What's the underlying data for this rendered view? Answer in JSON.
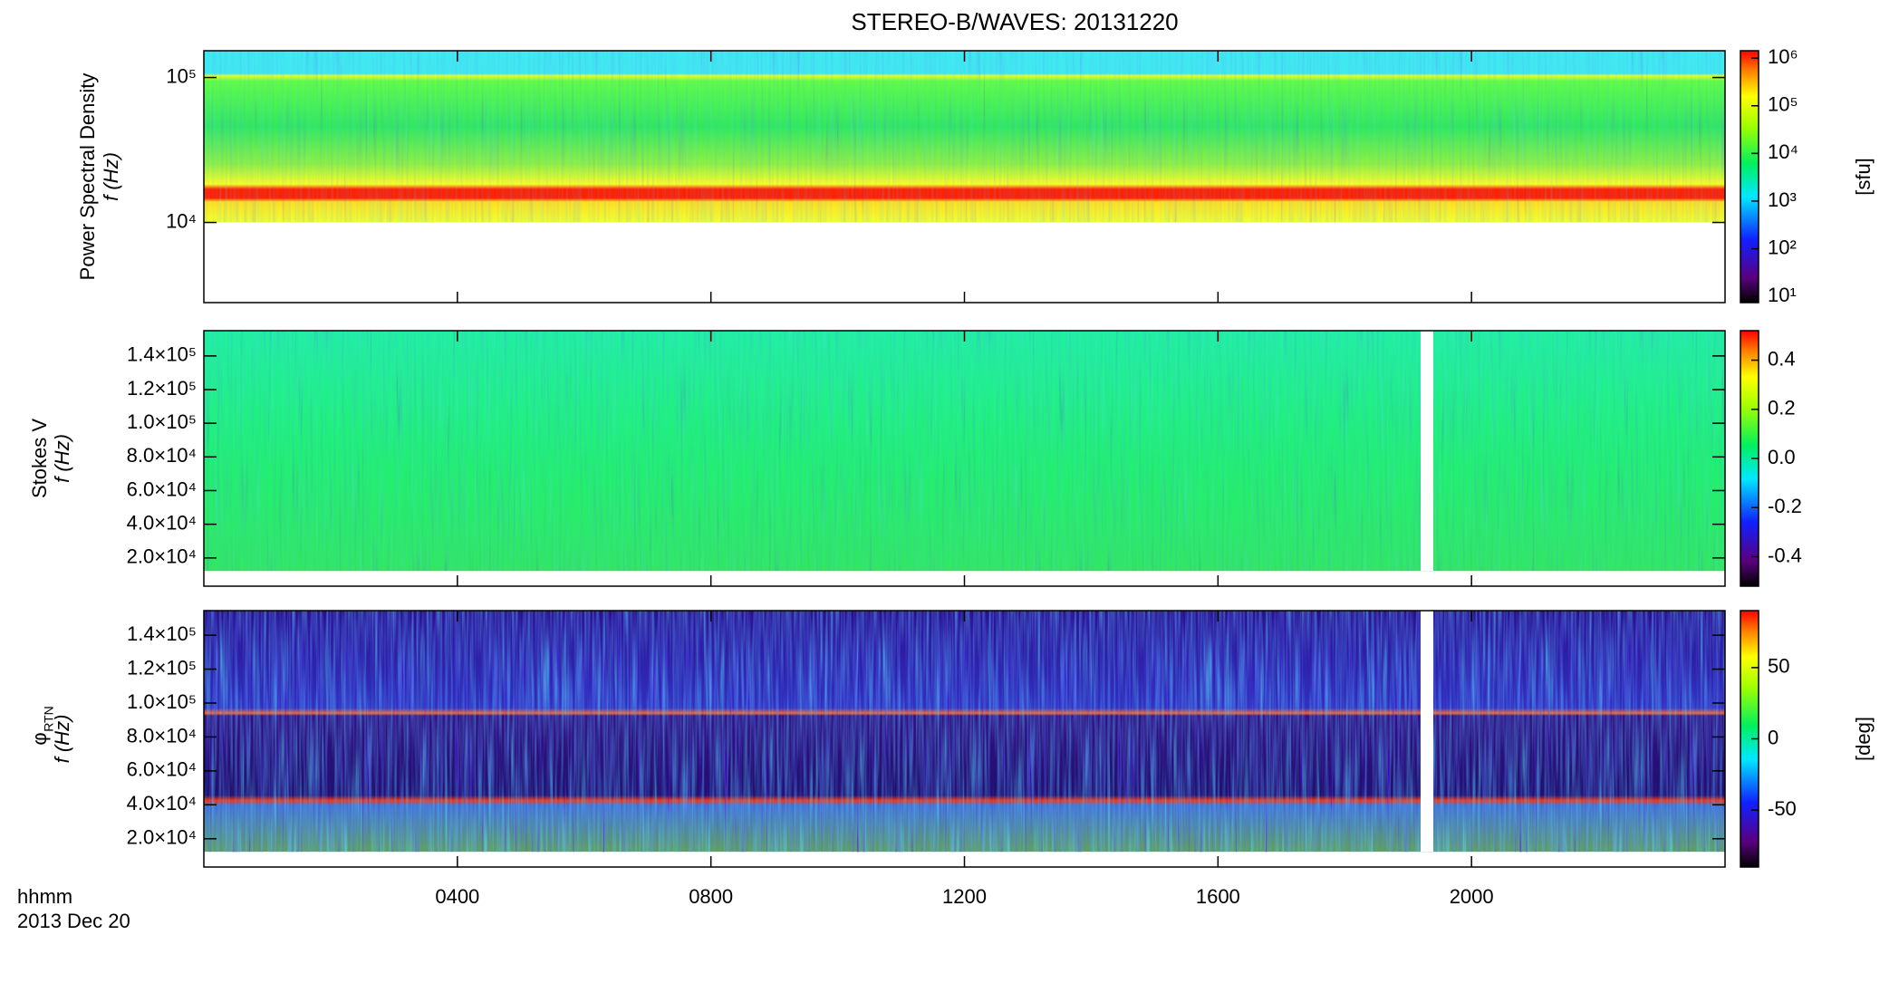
{
  "title": "STEREO-B/WAVES: 20131220",
  "x_axis": {
    "label": "hhmm",
    "date": "2013 Dec 20",
    "xlim": [
      0,
      24
    ],
    "xticks": [
      {
        "value": 4,
        "label": "0400"
      },
      {
        "value": 8,
        "label": "0800"
      },
      {
        "value": 12,
        "label": "1200"
      },
      {
        "value": 16,
        "label": "1600"
      },
      {
        "value": 20,
        "label": "2000"
      }
    ]
  },
  "chart_data": [
    {
      "type": "spectrogram",
      "ylabel": "Power Spectral Density",
      "ylabel2": "f (Hz)",
      "ylog": true,
      "ylim": [
        2800,
        153000
      ],
      "yticks": [
        {
          "value": 10000,
          "label": "10⁴"
        },
        {
          "value": 100000,
          "label": "10⁵"
        }
      ],
      "colorbar": {
        "log": true,
        "clim": [
          7.4,
          1430000
        ],
        "label": "[sfu]",
        "ticks": [
          {
            "value": 10,
            "label": "10¹"
          },
          {
            "value": 100,
            "label": "10²"
          },
          {
            "value": 1000,
            "label": "10³"
          },
          {
            "value": 10000,
            "label": "10⁴"
          },
          {
            "value": 100000,
            "label": "10⁵"
          },
          {
            "value": 1000000,
            "label": "10⁶"
          }
        ]
      }
    },
    {
      "type": "spectrogram",
      "ylabel": "Stokes V",
      "ylabel2": "f (Hz)",
      "ylog": false,
      "ylim": [
        3200,
        155000
      ],
      "yticks": [
        {
          "value": 20000,
          "label": "2.0×10⁴"
        },
        {
          "value": 40000,
          "label": "4.0×10⁴"
        },
        {
          "value": 60000,
          "label": "6.0×10⁴"
        },
        {
          "value": 80000,
          "label": "8.0×10⁴"
        },
        {
          "value": 100000,
          "label": "1.0×10⁵"
        },
        {
          "value": 120000,
          "label": "1.2×10⁵"
        },
        {
          "value": 140000,
          "label": "1.4×10⁵"
        }
      ],
      "colorbar": {
        "log": false,
        "clim": [
          -0.52,
          0.52
        ],
        "ticks": [
          -0.4,
          -0.2,
          {
            "value": 0,
            "label": "0.0"
          },
          0.2,
          0.4
        ]
      }
    },
    {
      "type": "spectrogram",
      "ylabel": "φ",
      "ylabel_sub": "RTN",
      "ylabel2": "f (Hz)",
      "ylog": false,
      "ylim": [
        3300,
        154500
      ],
      "yticks": [
        {
          "value": 20000,
          "label": "2.0×10⁴"
        },
        {
          "value": 40000,
          "label": "4.0×10⁴"
        },
        {
          "value": 60000,
          "label": "6.0×10⁴"
        },
        {
          "value": 80000,
          "label": "8.0×10⁴"
        },
        {
          "value": 100000,
          "label": "1.0×10⁵"
        },
        {
          "value": 120000,
          "label": "1.2×10⁵"
        },
        {
          "value": 140000,
          "label": "1.4×10⁵"
        }
      ],
      "colorbar": {
        "log": false,
        "clim": [
          -90,
          90
        ],
        "label": "[deg]",
        "ticks": [
          -50,
          0,
          50
        ]
      }
    }
  ]
}
